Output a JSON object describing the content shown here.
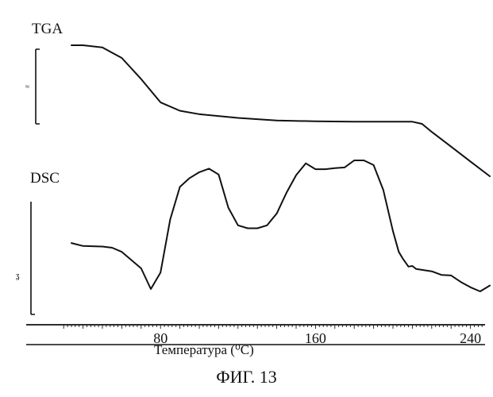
{
  "figure": {
    "caption": "ФИГ. 13"
  },
  "chart_data": {
    "type": "line",
    "xlabel": "Температура (⁰C)",
    "xlim": [
      30,
      250
    ],
    "tick_labels": [
      "80",
      "160",
      "240"
    ],
    "tick_values": [
      80,
      160,
      240
    ],
    "series": [
      {
        "name": "TGA",
        "x": [
          34,
          40,
          50,
          60,
          70,
          80,
          90,
          100,
          120,
          140,
          160,
          180,
          200,
          210,
          215,
          220,
          230,
          240,
          250
        ],
        "y": [
          100,
          100,
          99.5,
          97,
          92,
          86.5,
          84.5,
          83.7,
          82.8,
          82.2,
          82,
          81.9,
          81.9,
          81.9,
          81.4,
          79.5,
          76,
          72.5,
          69
        ]
      },
      {
        "name": "DSC",
        "x": [
          34,
          40,
          50,
          55,
          60,
          70,
          75,
          80,
          85,
          90,
          95,
          100,
          105,
          110,
          115,
          120,
          125,
          130,
          135,
          140,
          145,
          150,
          155,
          160,
          165,
          170,
          175,
          180,
          185,
          190,
          195,
          200,
          203,
          205,
          208,
          210,
          212,
          220,
          225,
          230,
          235,
          240,
          245,
          250
        ],
        "y": [
          8,
          7.5,
          7.4,
          7.2,
          6.5,
          3.7,
          0.2,
          3,
          12,
          17.5,
          19,
          20,
          20.6,
          19.6,
          14,
          11,
          10.5,
          10.5,
          11,
          13,
          16.5,
          19.5,
          21.5,
          20.5,
          20.5,
          20.7,
          20.8,
          22,
          22,
          21.2,
          17,
          10,
          6.5,
          5.4,
          4,
          4.1,
          3.6,
          3.2,
          2.6,
          2.5,
          1.4,
          0.5,
          -0.2,
          0.8
        ]
      }
    ]
  }
}
